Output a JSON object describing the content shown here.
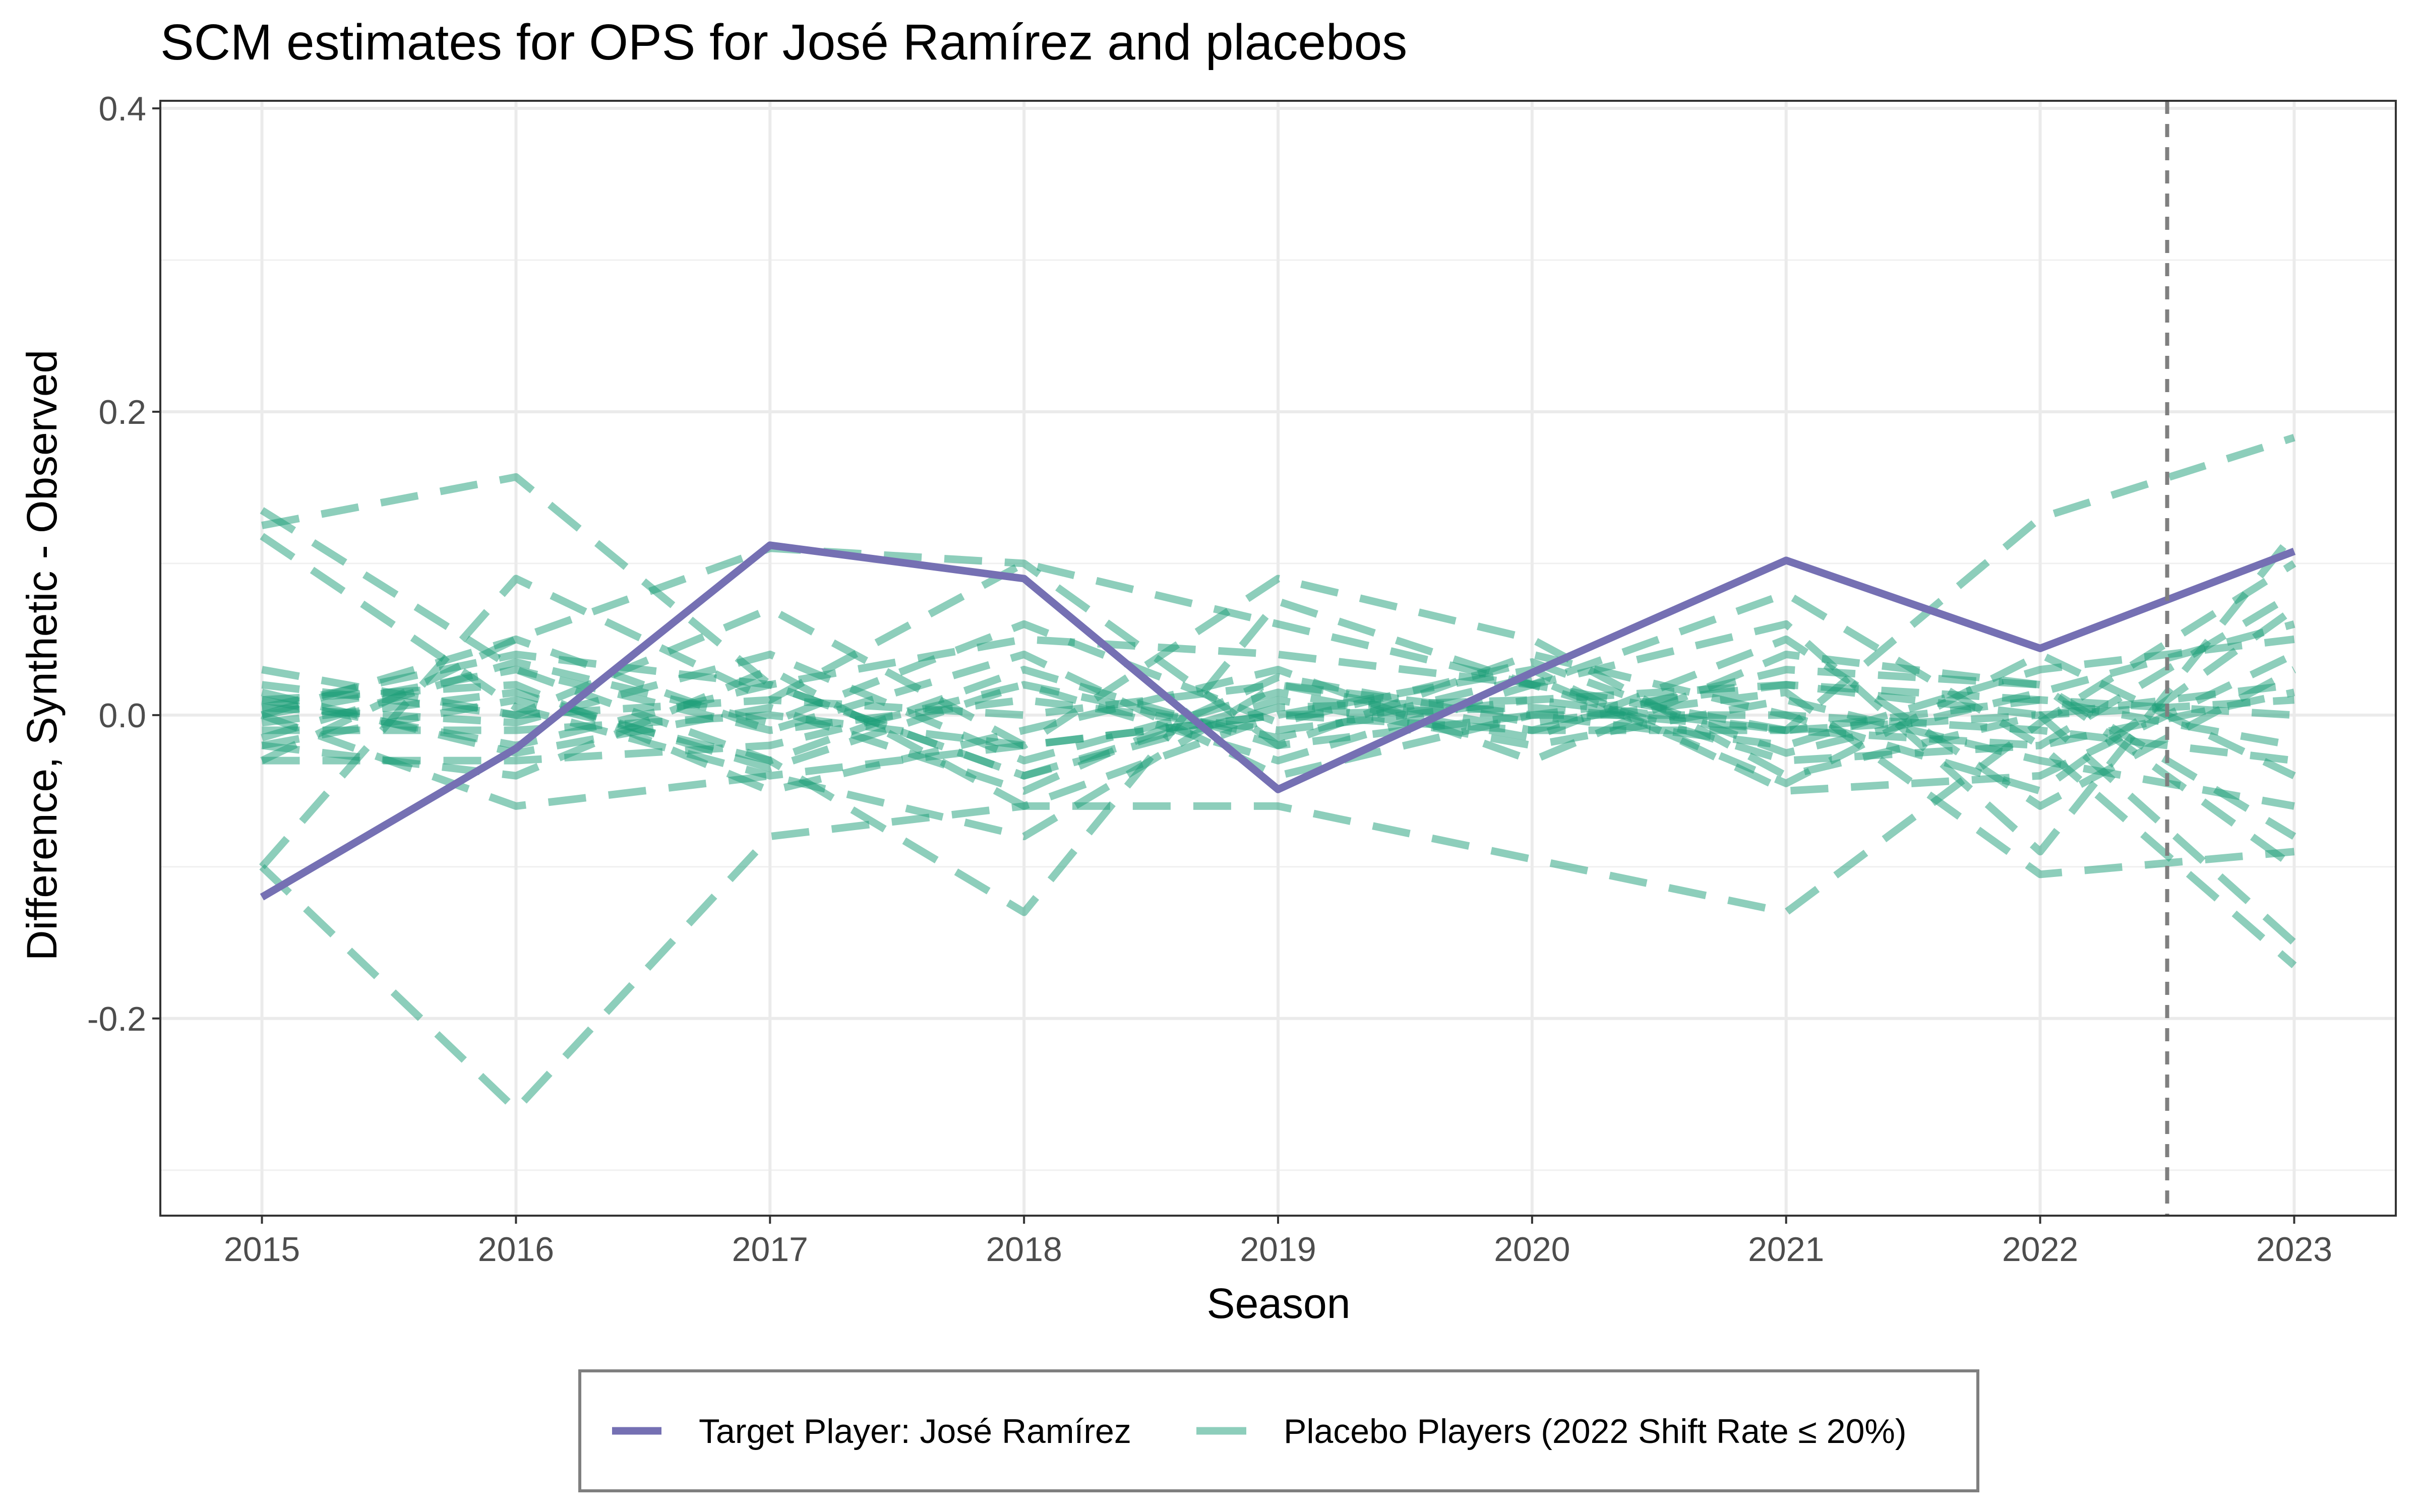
{
  "chart_data": {
    "type": "line",
    "title": "SCM estimates for OPS for José Ramírez and placebos",
    "xlabel": "Season",
    "ylabel": "Difference, Synthetic - Observed",
    "x": [
      2015,
      2016,
      2017,
      2018,
      2019,
      2020,
      2021,
      2022,
      2023
    ],
    "x_tick_labels": [
      "2015",
      "2016",
      "2017",
      "2018",
      "2019",
      "2020",
      "2021",
      "2022",
      "2023"
    ],
    "y_ticks": [
      -0.2,
      0.0,
      0.2,
      0.4
    ],
    "y_tick_labels": [
      "-0.2",
      "0.0",
      "0.2",
      "0.4"
    ],
    "xlim": [
      2014.6,
      2023.4
    ],
    "ylim": [
      -0.33,
      0.405
    ],
    "grid": true,
    "treatment_line_x": 2022.5,
    "legend_position": "bottom",
    "colors": {
      "target": "#7570b3",
      "placebo": "#1b9e77",
      "treatment_line": "#7f7f7f"
    },
    "target_series": {
      "name": "Target Player: José Ramírez",
      "values": [
        -0.12,
        -0.022,
        0.112,
        0.09,
        -0.049,
        0.028,
        0.102,
        0.044,
        0.108
      ]
    },
    "placebo_legend_label": "Placebo Players (2022 Shift Rate ≤ 20%)",
    "placebo_series": [
      [
        0.125,
        0.157,
        0.02,
        -0.04,
        0.005,
        0.01,
        -0.01,
        0.0,
        0.01
      ],
      [
        -0.1,
        -0.26,
        -0.08,
        -0.06,
        -0.06,
        -0.095,
        -0.13,
        -0.005,
        0.1
      ],
      [
        0.135,
        0.03,
        -0.03,
        -0.13,
        0.075,
        0.02,
        -0.01,
        -0.02,
        0.015
      ],
      [
        0.118,
        0.005,
        -0.04,
        -0.02,
        0.0,
        0.005,
        -0.01,
        0.13,
        0.183
      ],
      [
        -0.1,
        0.09,
        0.01,
        0.1,
        0.06,
        0.02,
        0.08,
        -0.02,
        -0.165
      ],
      [
        -0.03,
        0.05,
        0.11,
        0.1,
        -0.02,
        0.04,
        0.0,
        -0.05,
        0.07
      ],
      [
        0.03,
        0.0,
        0.07,
        -0.02,
        0.09,
        0.05,
        -0.04,
        0.0,
        -0.15
      ],
      [
        0.005,
        0.04,
        0.02,
        0.05,
        0.04,
        0.02,
        0.06,
        -0.09,
        0.12
      ],
      [
        0.0,
        -0.06,
        -0.04,
        -0.08,
        0.02,
        -0.01,
        0.03,
        0.02,
        -0.1
      ],
      [
        -0.02,
        0.01,
        -0.03,
        0.03,
        -0.02,
        0.0,
        -0.02,
        0.03,
        0.05
      ],
      [
        0.01,
        -0.02,
        0.02,
        -0.04,
        0.01,
        -0.02,
        0.01,
        -0.03,
        -0.06
      ],
      [
        0.0,
        0.03,
        -0.01,
        0.01,
        -0.01,
        0.01,
        0.02,
        0.0,
        0.02
      ],
      [
        -0.01,
        -0.01,
        0.0,
        -0.02,
        0.0,
        -0.01,
        -0.01,
        0.01,
        0.0
      ],
      [
        0.02,
        0.0,
        0.01,
        0.0,
        0.02,
        0.0,
        0.0,
        -0.01,
        -0.03
      ],
      [
        -0.03,
        -0.03,
        -0.02,
        0.02,
        -0.03,
        0.02,
        -0.03,
        -0.02,
        0.08
      ],
      [
        0.01,
        0.02,
        -0.05,
        -0.01,
        0.03,
        -0.03,
        0.04,
        0.02,
        -0.08
      ],
      [
        -0.02,
        -0.04,
        0.03,
        -0.06,
        0.0,
        0.03,
        -0.05,
        -0.04,
        0.04
      ],
      [
        0.0,
        0.05,
        -0.01,
        0.04,
        -0.04,
        0.0,
        0.02,
        0.01,
        -0.02
      ],
      [
        0.005,
        -0.005,
        0.04,
        -0.03,
        0.015,
        -0.015,
        0.05,
        -0.06,
        0.03
      ],
      [
        -0.005,
        0.015,
        -0.035,
        0.02,
        -0.015,
        0.025,
        -0.045,
        0.04,
        -0.04
      ],
      [
        0.015,
        -0.025,
        0.005,
        -0.05,
        0.025,
        -0.005,
        0.015,
        -0.105,
        -0.09
      ],
      [
        -0.015,
        0.035,
        -0.005,
        0.06,
        -0.005,
        0.035,
        -0.025,
        0.015,
        0.06
      ]
    ]
  }
}
